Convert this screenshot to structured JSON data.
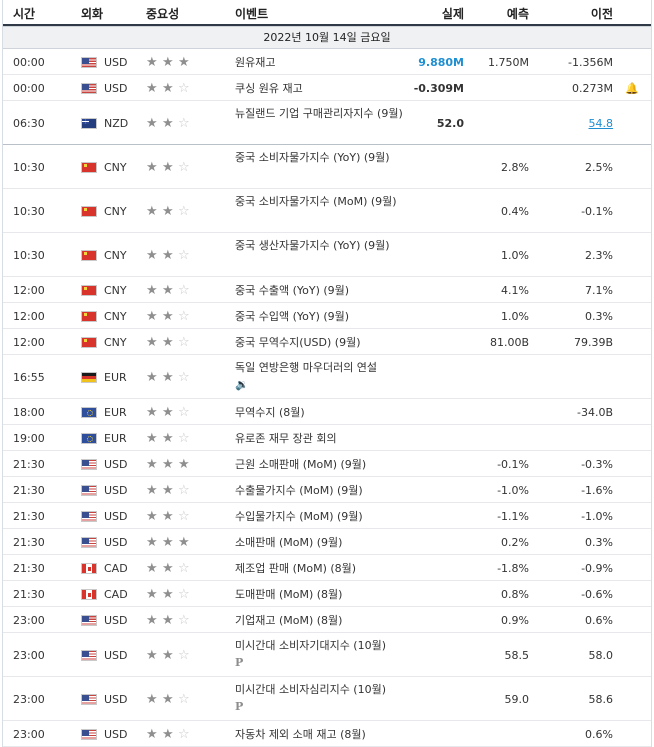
{
  "header": {
    "time": "시간",
    "currency": "외화",
    "importance": "중요성",
    "event": "이벤트",
    "actual": "실제",
    "forecast": "예측",
    "previous": "이전"
  },
  "date_label": "2022년 10월 14일 금요일",
  "colors": {
    "actual_highlight": "#1f8fd2",
    "header_rule": "#2f3a46",
    "date_band": "#f0f1f3"
  },
  "rows": [
    {
      "time": "00:00",
      "flag": "us-flag-icon",
      "currency": "USD",
      "stars": 3,
      "event": "원유재고",
      "actual": "9.880M",
      "actual_color": "blue",
      "forecast": "1.750M",
      "previous": "-1.356M"
    },
    {
      "time": "00:00",
      "flag": "us-flag-icon",
      "currency": "USD",
      "stars": 2,
      "event": "쿠싱 원유 재고",
      "actual": "-0.309M",
      "actual_color": "black",
      "forecast": "",
      "previous": "0.273M",
      "bell": "bell-icon"
    },
    {
      "time": "06:30",
      "flag": "nz-flag-icon",
      "currency": "NZD",
      "stars": 2,
      "event": "뉴질랜드 기업 구매관리자지수 (9월)",
      "actual": "52.0",
      "actual_color": "black",
      "forecast": "",
      "previous": "54.8",
      "previous_link": true
    },
    {
      "time": "10:30",
      "flag": "cn-flag-icon",
      "currency": "CNY",
      "stars": 2,
      "event": "중국 소비자물가지수 (YoY) (9월)",
      "actual": "",
      "forecast": "2.8%",
      "previous": "2.5%"
    },
    {
      "time": "10:30",
      "flag": "cn-flag-icon",
      "currency": "CNY",
      "stars": 2,
      "event": "중국 소비자물가지수 (MoM) (9월)",
      "actual": "",
      "forecast": "0.4%",
      "previous": "-0.1%"
    },
    {
      "time": "10:30",
      "flag": "cn-flag-icon",
      "currency": "CNY",
      "stars": 2,
      "event": "중국 생산자물가지수 (YoY) (9월)",
      "actual": "",
      "forecast": "1.0%",
      "previous": "2.3%"
    },
    {
      "time": "12:00",
      "flag": "cn-flag-icon",
      "currency": "CNY",
      "stars": 2,
      "event": "중국 수출액 (YoY) (9월)",
      "actual": "",
      "forecast": "4.1%",
      "previous": "7.1%"
    },
    {
      "time": "12:00",
      "flag": "cn-flag-icon",
      "currency": "CNY",
      "stars": 2,
      "event": "중국 수입액 (YoY) (9월)",
      "actual": "",
      "forecast": "1.0%",
      "previous": "0.3%"
    },
    {
      "time": "12:00",
      "flag": "cn-flag-icon",
      "currency": "CNY",
      "stars": 2,
      "event": "중국 무역수지(USD) (9월)",
      "actual": "",
      "forecast": "81.00B",
      "previous": "79.39B"
    },
    {
      "time": "16:55",
      "flag": "de-flag-icon",
      "currency": "EUR",
      "stars": 2,
      "event": "독일 연방은행 마우더러의 연설",
      "sub": "speaker-icon",
      "actual": "",
      "forecast": "",
      "previous": ""
    },
    {
      "time": "18:00",
      "flag": "eu-flag-icon",
      "currency": "EUR",
      "stars": 2,
      "event": "무역수지 (8월)",
      "actual": "",
      "forecast": "",
      "previous": "-34.0B"
    },
    {
      "time": "19:00",
      "flag": "eu-flag-icon",
      "currency": "EUR",
      "stars": 2,
      "event": "유로존 재무 장관 회의",
      "actual": "",
      "forecast": "",
      "previous": ""
    },
    {
      "time": "21:30",
      "flag": "us-flag-icon",
      "currency": "USD",
      "stars": 3,
      "event": "근원 소매판매 (MoM) (9월)",
      "actual": "",
      "forecast": "-0.1%",
      "previous": "-0.3%"
    },
    {
      "time": "21:30",
      "flag": "us-flag-icon",
      "currency": "USD",
      "stars": 2,
      "event": "수출물가지수 (MoM) (9월)",
      "actual": "",
      "forecast": "-1.0%",
      "previous": "-1.6%"
    },
    {
      "time": "21:30",
      "flag": "us-flag-icon",
      "currency": "USD",
      "stars": 2,
      "event": "수입물가지수 (MoM) (9월)",
      "actual": "",
      "forecast": "-1.1%",
      "previous": "-1.0%"
    },
    {
      "time": "21:30",
      "flag": "us-flag-icon",
      "currency": "USD",
      "stars": 3,
      "event": "소매판매 (MoM) (9월)",
      "actual": "",
      "forecast": "0.2%",
      "previous": "0.3%"
    },
    {
      "time": "21:30",
      "flag": "ca-flag-icon",
      "currency": "CAD",
      "stars": 2,
      "event": "제조업 판매 (MoM) (8월)",
      "actual": "",
      "forecast": "-1.8%",
      "previous": "-0.9%"
    },
    {
      "time": "21:30",
      "flag": "ca-flag-icon",
      "currency": "CAD",
      "stars": 2,
      "event": "도매판매 (MoM) (8월)",
      "actual": "",
      "forecast": "0.8%",
      "previous": "-0.6%"
    },
    {
      "time": "23:00",
      "flag": "us-flag-icon",
      "currency": "USD",
      "stars": 2,
      "event": "기업재고 (MoM) (8월)",
      "actual": "",
      "forecast": "0.9%",
      "previous": "0.6%"
    },
    {
      "time": "23:00",
      "flag": "us-flag-icon",
      "currency": "USD",
      "stars": 2,
      "event": "미시간대 소비자기대지수 (10월)",
      "sub": "preliminary-icon",
      "sub_text": "P",
      "actual": "",
      "forecast": "58.5",
      "previous": "58.0"
    },
    {
      "time": "23:00",
      "flag": "us-flag-icon",
      "currency": "USD",
      "stars": 2,
      "event": "미시간대 소비자심리지수 (10월)",
      "sub": "preliminary-icon",
      "sub_text": "P",
      "actual": "",
      "forecast": "59.0",
      "previous": "58.6"
    },
    {
      "time": "23:00",
      "flag": "us-flag-icon",
      "currency": "USD",
      "stars": 2,
      "event": "자동차 제외 소매 재고 (8월)",
      "actual": "",
      "forecast": "",
      "previous": "0.6%"
    }
  ]
}
